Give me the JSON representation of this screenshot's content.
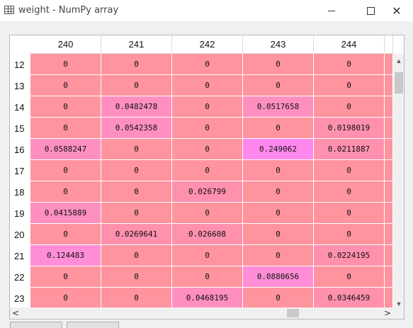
{
  "window": {
    "title": "weight - NumPy array",
    "icon": "table-icon"
  },
  "columns": [
    "240",
    "241",
    "242",
    "243",
    "244"
  ],
  "rows": [
    {
      "label": "12",
      "cells": [
        "0",
        "0",
        "0",
        "0",
        "0"
      ]
    },
    {
      "label": "13",
      "cells": [
        "0",
        "0",
        "0",
        "0",
        "0"
      ]
    },
    {
      "label": "14",
      "cells": [
        "0",
        "0.0482478",
        "0",
        "0.0517658",
        "0"
      ]
    },
    {
      "label": "15",
      "cells": [
        "0",
        "0.0542358",
        "0",
        "0",
        "0.0198019"
      ]
    },
    {
      "label": "16",
      "cells": [
        "0.0588247",
        "0",
        "0",
        "0.249062",
        "0.0211887"
      ]
    },
    {
      "label": "17",
      "cells": [
        "0",
        "0",
        "0",
        "0",
        "0"
      ]
    },
    {
      "label": "18",
      "cells": [
        "0",
        "0",
        "0.026799",
        "0",
        "0"
      ]
    },
    {
      "label": "19",
      "cells": [
        "0.0415889",
        "0",
        "0",
        "0",
        "0"
      ]
    },
    {
      "label": "20",
      "cells": [
        "0",
        "0.0269641",
        "0.026608",
        "0",
        "0"
      ]
    },
    {
      "label": "21",
      "cells": [
        "0.124483",
        "0",
        "0",
        "0",
        "0.0224195"
      ]
    },
    {
      "label": "22",
      "cells": [
        "0",
        "0",
        "0",
        "0.0880656",
        "0"
      ]
    },
    {
      "label": "23",
      "cells": [
        "0",
        "0",
        "0.0468195",
        "0",
        "0.0346459"
      ]
    }
  ],
  "colors": {
    "zero": "#ff939e",
    "low": "#ff90ae",
    "mid": "#ff8fc0",
    "high": "#ff8ed6",
    "max": "#ff88ee"
  }
}
